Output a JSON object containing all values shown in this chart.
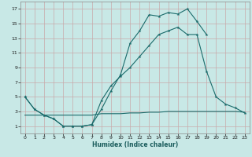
{
  "xlabel": "Humidex (Indice chaleur)",
  "bg_color": "#c8e8e6",
  "line_color": "#1a6b6b",
  "xlim": [
    -0.5,
    23.5
  ],
  "ylim": [
    0,
    18
  ],
  "xticks": [
    0,
    1,
    2,
    3,
    4,
    5,
    6,
    7,
    8,
    9,
    10,
    11,
    12,
    13,
    14,
    15,
    16,
    17,
    18,
    19,
    20,
    21,
    22,
    23
  ],
  "yticks": [
    1,
    3,
    5,
    7,
    9,
    11,
    13,
    15,
    17
  ],
  "line1_x": [
    0,
    1,
    2,
    3,
    4,
    5,
    6,
    7,
    8,
    9,
    10,
    11,
    12,
    13,
    14,
    15,
    16,
    17,
    18,
    19
  ],
  "line1_y": [
    5.0,
    3.3,
    2.5,
    2.0,
    1.0,
    1.0,
    1.0,
    1.2,
    3.3,
    5.8,
    8.0,
    12.3,
    14.0,
    16.2,
    16.0,
    16.5,
    16.3,
    17.0,
    15.3,
    13.5
  ],
  "line2_x": [
    0,
    1,
    2,
    3,
    4,
    5,
    6,
    7,
    8,
    9,
    10,
    11,
    12,
    13,
    14,
    15,
    16,
    17,
    18,
    19,
    20,
    21,
    22,
    23
  ],
  "line2_y": [
    5.0,
    3.3,
    2.5,
    2.0,
    1.0,
    1.0,
    1.0,
    1.2,
    4.5,
    6.5,
    7.8,
    9.0,
    10.5,
    12.0,
    13.5,
    14.0,
    14.5,
    13.5,
    13.5,
    8.5,
    5.0,
    4.0,
    3.5,
    2.8
  ],
  "line3_x": [
    0,
    1,
    2,
    3,
    4,
    5,
    6,
    7,
    8,
    9,
    10,
    11,
    12,
    13,
    14,
    15,
    16,
    17,
    18,
    19,
    20,
    21,
    22,
    23
  ],
  "line3_y": [
    2.5,
    2.5,
    2.5,
    2.5,
    2.5,
    2.5,
    2.5,
    2.5,
    2.7,
    2.7,
    2.7,
    2.8,
    2.8,
    2.9,
    2.9,
    3.0,
    3.0,
    3.0,
    3.0,
    3.0,
    3.0,
    3.0,
    3.0,
    2.9
  ]
}
